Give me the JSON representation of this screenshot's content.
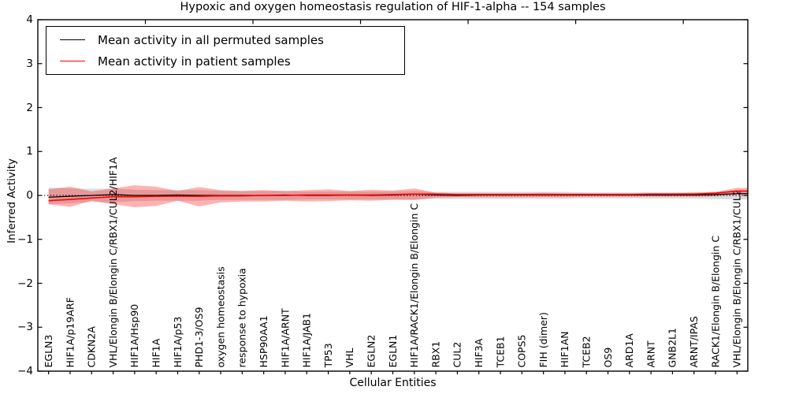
{
  "title": "Hypoxic and oxygen homeostasis regulation of HIF-1-alpha -- 154 samples",
  "axes": {
    "xlabel": "Cellular Entities",
    "ylabel": "Inferred Activity",
    "yticks": [
      4,
      3,
      2,
      1,
      0,
      -1,
      -2,
      -3,
      -4
    ],
    "ytick_labels": [
      "4",
      "3",
      "2",
      "1",
      "0",
      "−1",
      "−2",
      "−3",
      "−4"
    ],
    "xticks_major": [
      5,
      10,
      15,
      20,
      25,
      30
    ],
    "ylim": [
      -4,
      4
    ]
  },
  "legend": {
    "entries": [
      {
        "label": "Mean activity in all permuted samples",
        "color": "#000000",
        "line_width": 1.3
      },
      {
        "label": "Mean activity in patient samples",
        "color": "#ff0000",
        "line_width": 1.6
      }
    ]
  },
  "colors": {
    "permuted_line": "#000000",
    "patient_line": "#ff0000",
    "permuted_band": "rgba(0,0,0,0.14)",
    "patient_band": "rgba(255,0,0,0.30)",
    "zero_line": "#000000",
    "spine": "#000000"
  },
  "chart_data": {
    "type": "line",
    "title": "Hypoxic and oxygen homeostasis regulation of HIF-1-alpha -- 154 samples",
    "xlabel": "Cellular Entities",
    "ylabel": "Inferred Activity",
    "ylim": [
      -4,
      4
    ],
    "grid": false,
    "legend_position": "upper left",
    "zero_line": 0,
    "categories": [
      "EGLN3",
      "HIF1A/p19ARF",
      "CDKN2A",
      "VHL/Elongin B/Elongin C/RBX1/CUL2/HIF1A",
      "HIF1A/Hsp90",
      "HIF1A",
      "HIF1A/p53",
      "PHD1-3/OS9",
      "oxygen homeostasis",
      "response to hypoxia",
      "HSP90AA1",
      "HIF1A/ARNT",
      "HIF1A/JAB1",
      "TP53",
      "VHL",
      "EGLN2",
      "EGLN1",
      "HIF1A/RACK1/Elongin B/Elongin C",
      "RBX1",
      "CUL2",
      "HIF3A",
      "TCEB1",
      "COPS5",
      "FIH (dimer)",
      "HIF1AN",
      "TCEB2",
      "OS9",
      "ARD1A",
      "ARNT",
      "GNB2L1",
      "ARNT/IPAS",
      "RACK1/Elongin B/Elongin C",
      "VHL/Elongin B/Elongin C/RBX1/CUL2"
    ],
    "series": [
      {
        "name": "Mean activity in all permuted samples",
        "color": "#000000",
        "values": [
          -0.04,
          -0.02,
          0.0,
          0.02,
          0.0,
          0.0,
          0.01,
          0.0,
          0.0,
          0.0,
          0.0,
          0.01,
          0.0,
          0.0,
          0.01,
          0.0,
          0.01,
          0.03,
          0.01,
          0.0,
          0.01,
          0.01,
          0.01,
          0.01,
          0.01,
          0.01,
          0.01,
          0.01,
          0.01,
          0.01,
          0.01,
          0.02,
          0.04
        ]
      },
      {
        "name": "Mean activity in patient samples",
        "color": "#ff0000",
        "values": [
          -0.12,
          -0.09,
          -0.06,
          -0.03,
          -0.03,
          -0.02,
          -0.02,
          -0.02,
          -0.01,
          -0.01,
          0.0,
          0.0,
          0.01,
          0.01,
          0.01,
          0.01,
          0.02,
          0.03,
          0.03,
          0.02,
          0.02,
          0.02,
          0.02,
          0.02,
          0.02,
          0.02,
          0.02,
          0.02,
          0.03,
          0.03,
          0.03,
          0.05,
          0.1
        ]
      }
    ],
    "bands": [
      {
        "name": "permuted-std-band",
        "fill": "rgba(0,0,0,0.14)",
        "upper": [
          0.18,
          0.16,
          0.15,
          0.16,
          0.13,
          0.12,
          0.12,
          0.12,
          0.1,
          0.1,
          0.1,
          0.1,
          0.09,
          0.09,
          0.09,
          0.09,
          0.09,
          0.1,
          0.08,
          0.08,
          0.08,
          0.08,
          0.08,
          0.08,
          0.08,
          0.07,
          0.07,
          0.07,
          0.07,
          0.07,
          0.07,
          0.08,
          0.11
        ],
        "lower": [
          -0.2,
          -0.18,
          -0.15,
          -0.16,
          -0.13,
          -0.12,
          -0.12,
          -0.12,
          -0.1,
          -0.1,
          -0.1,
          -0.1,
          -0.09,
          -0.09,
          -0.09,
          -0.09,
          -0.09,
          -0.1,
          -0.08,
          -0.08,
          -0.08,
          -0.08,
          -0.08,
          -0.08,
          -0.08,
          -0.07,
          -0.07,
          -0.07,
          -0.07,
          -0.07,
          -0.07,
          -0.08,
          -0.09
        ]
      },
      {
        "name": "patient-std-band",
        "fill": "rgba(255,0,0,0.30)",
        "upper": [
          0.14,
          0.2,
          0.09,
          0.16,
          0.23,
          0.2,
          0.1,
          0.19,
          0.12,
          0.1,
          0.12,
          0.1,
          0.12,
          0.14,
          0.1,
          0.13,
          0.11,
          0.16,
          0.06,
          0.05,
          0.05,
          0.05,
          0.05,
          0.06,
          0.05,
          0.05,
          0.05,
          0.05,
          0.05,
          0.05,
          0.06,
          0.08,
          0.17
        ],
        "lower": [
          -0.2,
          -0.26,
          -0.12,
          -0.2,
          -0.27,
          -0.24,
          -0.12,
          -0.25,
          -0.16,
          -0.14,
          -0.14,
          -0.12,
          -0.14,
          -0.13,
          -0.11,
          -0.12,
          -0.1,
          -0.1,
          -0.05,
          -0.04,
          -0.04,
          -0.04,
          -0.04,
          -0.04,
          -0.04,
          -0.03,
          -0.03,
          -0.03,
          -0.03,
          -0.03,
          -0.03,
          -0.02,
          0.02
        ]
      }
    ]
  }
}
